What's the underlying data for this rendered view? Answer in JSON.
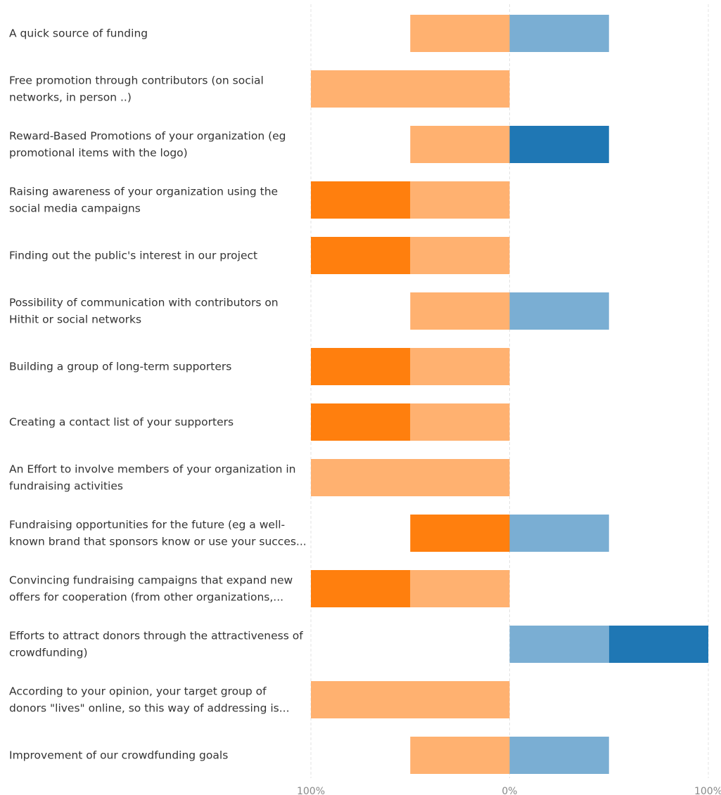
{
  "chart_data": {
    "type": "bar",
    "orientation": "horizontal",
    "stacking": "diverging",
    "title": "",
    "xlabel": "",
    "ylabel": "",
    "xlim": [
      -100,
      100
    ],
    "grid": true,
    "legend": "none",
    "x_tick_labels": [
      "100%",
      "0%",
      "100%"
    ],
    "colors": {
      "strong_negative": "#ff7f0e",
      "negative": "#ffb170",
      "positive": "#7aaed3",
      "strong_positive": "#1f77b4"
    },
    "categories": [
      {
        "label": [
          "A quick source of funding"
        ],
        "strong_negative": 0,
        "negative": 50,
        "positive": 50,
        "strong_positive": 0
      },
      {
        "label": [
          "Free promotion through contributors (on social",
          "networks, in person ..)"
        ],
        "strong_negative": 0,
        "negative": 100,
        "positive": 0,
        "strong_positive": 0
      },
      {
        "label": [
          "Reward-Based Promotions of your organization (eg",
          "promotional items with the logo)"
        ],
        "strong_negative": 0,
        "negative": 50,
        "positive": 0,
        "strong_positive": 50
      },
      {
        "label": [
          "Raising awareness of your organization using the",
          "social media campaigns"
        ],
        "strong_negative": 50,
        "negative": 50,
        "positive": 0,
        "strong_positive": 0
      },
      {
        "label": [
          "Finding out the public's interest in our project"
        ],
        "strong_negative": 50,
        "negative": 50,
        "positive": 0,
        "strong_positive": 0
      },
      {
        "label": [
          "Possibility of communication with contributors on",
          "Hithit or social networks"
        ],
        "strong_negative": 0,
        "negative": 50,
        "positive": 50,
        "strong_positive": 0
      },
      {
        "label": [
          "Building a group of long-term supporters"
        ],
        "strong_negative": 50,
        "negative": 50,
        "positive": 0,
        "strong_positive": 0
      },
      {
        "label": [
          "Creating a contact list of your supporters"
        ],
        "strong_negative": 50,
        "negative": 50,
        "positive": 0,
        "strong_positive": 0
      },
      {
        "label": [
          "An Effort to involve members of your organization in",
          "fundraising activities"
        ],
        "strong_negative": 0,
        "negative": 100,
        "positive": 0,
        "strong_positive": 0
      },
      {
        "label": [
          "Fundraising opportunities for the future (eg a well-",
          "known brand that sponsors know or use your succes..."
        ],
        "strong_negative": 50,
        "negative": 0,
        "positive": 50,
        "strong_positive": 0
      },
      {
        "label": [
          "Convincing fundraising campaigns that expand new",
          "offers for cooperation (from other organizations,..."
        ],
        "strong_negative": 50,
        "negative": 50,
        "positive": 0,
        "strong_positive": 0
      },
      {
        "label": [
          "Efforts to attract donors through the attractiveness of",
          "crowdfunding)"
        ],
        "strong_negative": 0,
        "negative": 0,
        "positive": 50,
        "strong_positive": 50
      },
      {
        "label": [
          "According to your opinion, your target group of",
          "donors \"lives\" online, so this way of addressing is..."
        ],
        "strong_negative": 0,
        "negative": 100,
        "positive": 0,
        "strong_positive": 0
      },
      {
        "label": [
          "Improvement of our crowdfunding goals"
        ],
        "strong_negative": 0,
        "negative": 50,
        "positive": 50,
        "strong_positive": 0
      }
    ]
  }
}
